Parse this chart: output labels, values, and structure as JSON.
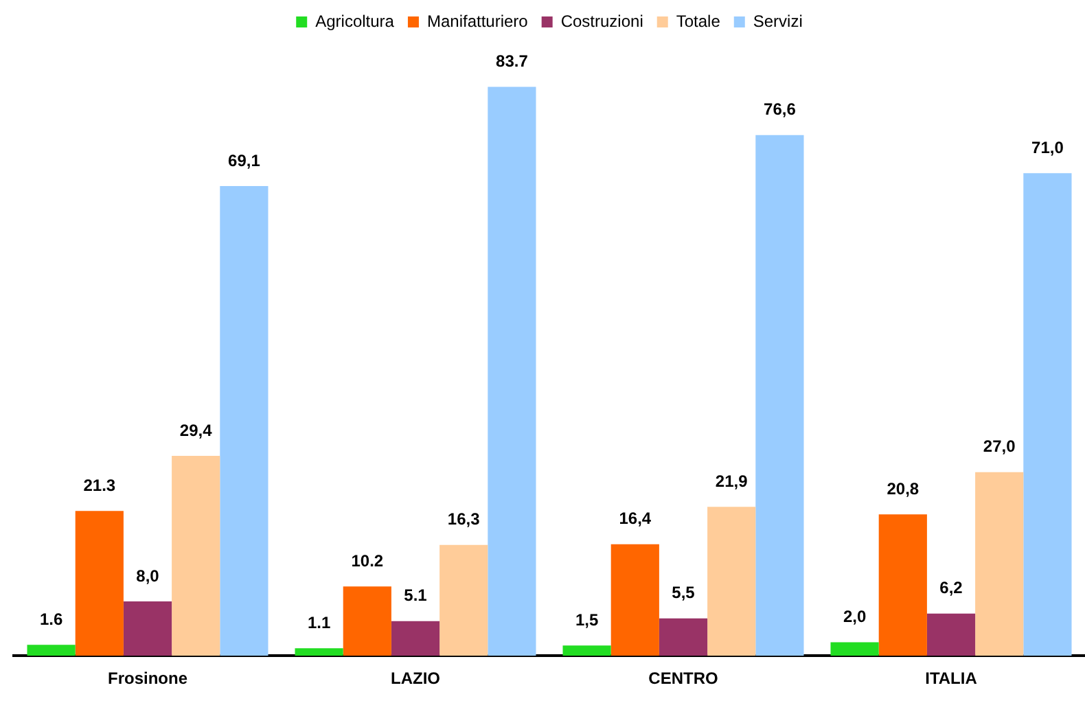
{
  "chart_data": {
    "type": "bar",
    "categories": [
      "Frosinone",
      "LAZIO",
      "CENTRO",
      "ITALIA"
    ],
    "series": [
      {
        "name": "Agricoltura",
        "color": "#22dd22",
        "values": [
          1.6,
          1.1,
          1.5,
          2.0
        ],
        "value_labels": [
          "1.6",
          "1.1",
          "1,5",
          "2,0"
        ]
      },
      {
        "name": "Manifatturiero",
        "color": "#ff6600",
        "values": [
          21.3,
          10.2,
          16.4,
          20.8
        ],
        "value_labels": [
          "21.3",
          "10.2",
          "16,4",
          "20,8"
        ]
      },
      {
        "name": "Costruzioni",
        "color": "#993366",
        "values": [
          8.0,
          5.1,
          5.5,
          6.2
        ],
        "value_labels": [
          "8,0",
          "5.1",
          "5,5",
          "6,2"
        ]
      },
      {
        "name": "Totale",
        "color": "#ffcc99",
        "values": [
          29.4,
          16.3,
          21.9,
          27.0
        ],
        "value_labels": [
          "29,4",
          "16,3",
          "21,9",
          "27,0"
        ]
      },
      {
        "name": "Servizi",
        "color": "#99ccff",
        "values": [
          69.1,
          83.7,
          76.6,
          71.0
        ],
        "value_labels": [
          "69,1",
          "83.7",
          "76,6",
          "71,0"
        ]
      }
    ],
    "legend": "top",
    "grid": false
  }
}
